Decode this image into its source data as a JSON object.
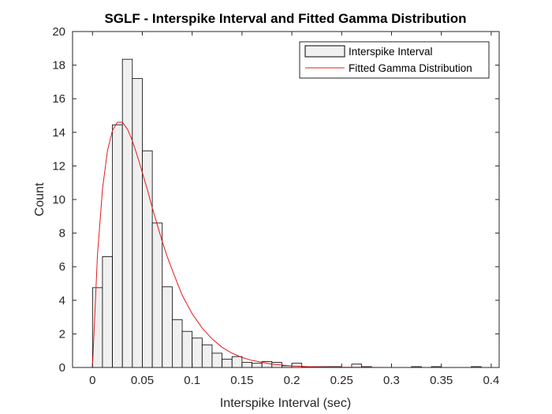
{
  "chart_data": {
    "type": "bar",
    "title": "SGLF - Interspike Interval and Fitted Gamma Distribution",
    "xlabel": "Interspike Interval (sec)",
    "ylabel": "Count",
    "xlim": [
      -0.02,
      0.408
    ],
    "ylim": [
      0,
      20
    ],
    "xticks": [
      "0",
      "0.05",
      "0.1",
      "0.15",
      "0.2",
      "0.25",
      "0.3",
      "0.35",
      "0.4"
    ],
    "xtick_values": [
      0,
      0.05,
      0.1,
      0.15,
      0.2,
      0.25,
      0.3,
      0.35,
      0.4
    ],
    "yticks": [
      "0",
      "2",
      "4",
      "6",
      "8",
      "10",
      "12",
      "14",
      "16",
      "18",
      "20"
    ],
    "ytick_values": [
      0,
      2,
      4,
      6,
      8,
      10,
      12,
      14,
      16,
      18,
      20
    ],
    "legend_position": "top-right",
    "colors": {
      "bar_fill": "#f0f0f0",
      "bar_edge": "#000000",
      "fit_line": "#e31a1c"
    },
    "series": [
      {
        "name": "Interspike Interval",
        "kind": "histogram",
        "bin_width": 0.01,
        "bin_edges_start": 0,
        "values": [
          4.75,
          6.6,
          14.45,
          18.35,
          17.2,
          12.9,
          8.6,
          4.8,
          2.85,
          2.15,
          1.75,
          1.35,
          0.85,
          0.5,
          0.65,
          0.3,
          0.25,
          0.35,
          0.3,
          0.1,
          0.25,
          0.05,
          0.05,
          0.05,
          0.05,
          0,
          0.2,
          0.05,
          0,
          0,
          0,
          0,
          0.05,
          0,
          0.05,
          0,
          0,
          0,
          0.05,
          0
        ]
      },
      {
        "name": "Fitted Gamma Distribution",
        "kind": "line",
        "x": [
          0,
          0.005,
          0.01,
          0.015,
          0.02,
          0.025,
          0.03,
          0.035,
          0.04,
          0.045,
          0.05,
          0.055,
          0.06,
          0.065,
          0.07,
          0.075,
          0.08,
          0.09,
          0.1,
          0.11,
          0.12,
          0.13,
          0.14,
          0.15,
          0.16,
          0.18,
          0.2,
          0.22,
          0.25,
          0.3,
          0.35,
          0.4
        ],
        "y": [
          0,
          6.7,
          10.6,
          12.9,
          14.1,
          14.6,
          14.6,
          14.2,
          13.5,
          12.6,
          11.6,
          10.6,
          9.5,
          8.5,
          7.5,
          6.6,
          5.8,
          4.3,
          3.2,
          2.35,
          1.7,
          1.2,
          0.85,
          0.6,
          0.42,
          0.2,
          0.09,
          0.04,
          0.01,
          0.0,
          0.0,
          0.0
        ]
      }
    ]
  }
}
